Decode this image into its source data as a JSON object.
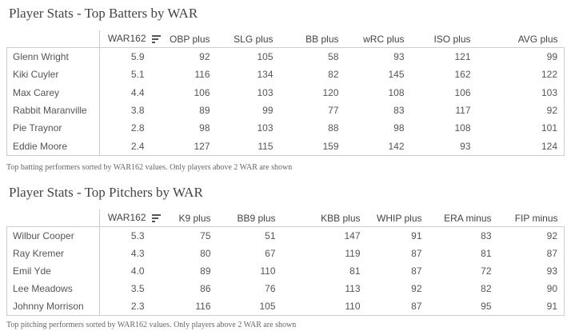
{
  "batting": {
    "title": "Player Stats - Top Batters by WAR",
    "headers": [
      "",
      "WAR162",
      "OBP plus",
      "SLG plus",
      "BB plus",
      "wRC plus",
      "ISO plus",
      "AVG plus"
    ],
    "sort_icon": "sort-descending-icon",
    "rows": [
      [
        "Glenn Wright",
        "5.9",
        "92",
        "105",
        "58",
        "93",
        "121",
        "99"
      ],
      [
        "Kiki Cuyler",
        "5.1",
        "116",
        "134",
        "82",
        "145",
        "162",
        "122"
      ],
      [
        "Max Carey",
        "4.4",
        "106",
        "103",
        "120",
        "108",
        "106",
        "103"
      ],
      [
        "Rabbit Maranville",
        "3.8",
        "89",
        "99",
        "77",
        "83",
        "117",
        "92"
      ],
      [
        "Pie Traynor",
        "2.8",
        "98",
        "103",
        "88",
        "98",
        "108",
        "101"
      ],
      [
        "Eddie Moore",
        "2.4",
        "127",
        "115",
        "159",
        "142",
        "93",
        "124"
      ]
    ],
    "caption": "Top batting performers sorted by WAR162 values. Only players above 2 WAR are shown"
  },
  "pitching": {
    "title": "Player Stats - Top Pitchers by WAR",
    "headers": [
      "",
      "WAR162",
      "K9 plus",
      "BB9 plus",
      "KBB plus",
      "WHIP plus",
      "ERA minus",
      "FIP minus"
    ],
    "sort_icon": "sort-descending-icon",
    "rows": [
      [
        "Wilbur Cooper",
        "5.3",
        "75",
        "51",
        "147",
        "91",
        "83",
        "92"
      ],
      [
        "Ray Kremer",
        "4.3",
        "80",
        "67",
        "119",
        "87",
        "81",
        "87"
      ],
      [
        "Emil Yde",
        "4.0",
        "89",
        "110",
        "81",
        "87",
        "72",
        "93"
      ],
      [
        "Lee Meadows",
        "3.5",
        "86",
        "76",
        "113",
        "92",
        "82",
        "90"
      ],
      [
        "Johnny Morrison",
        "2.3",
        "116",
        "105",
        "110",
        "87",
        "95",
        "91"
      ]
    ],
    "caption": "Top pitching performers sorted by WAR162 values. Only players above 2 WAR are shown"
  }
}
